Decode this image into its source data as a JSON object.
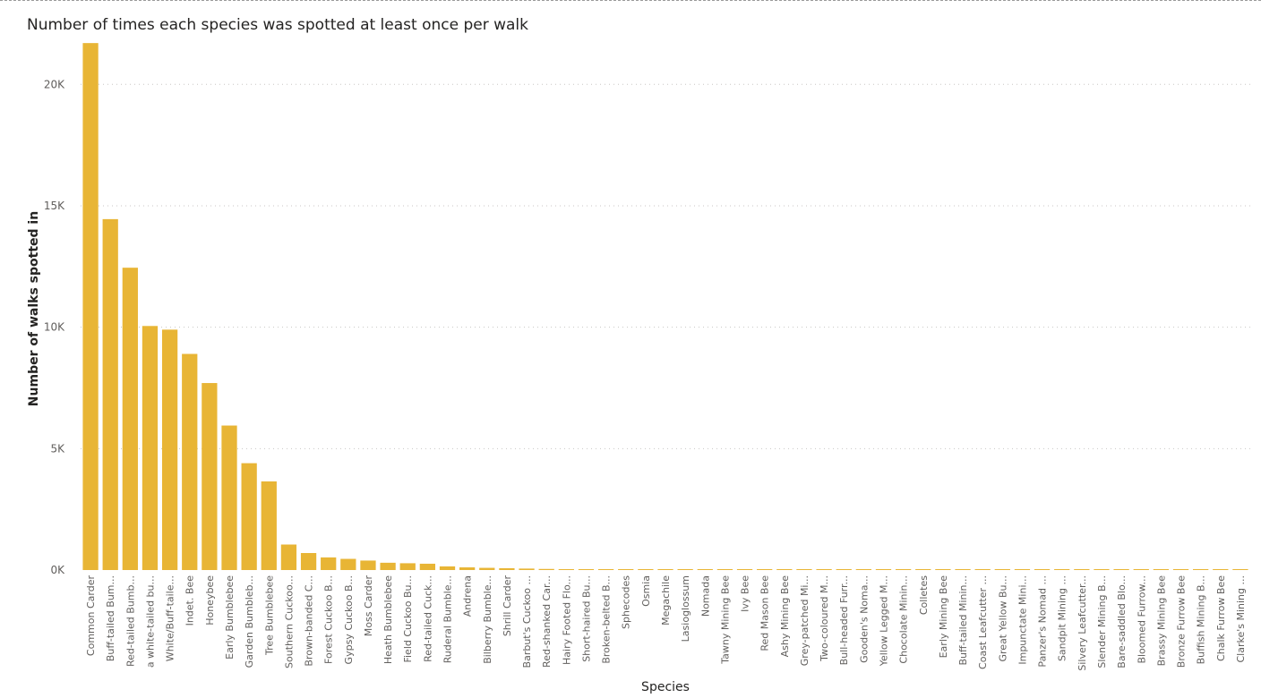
{
  "chart_data": {
    "type": "bar",
    "title": "Number of times each species was spotted at least once per walk",
    "xlabel": "Species",
    "ylabel": "Number of walks spotted in",
    "ylim": [
      0,
      22000
    ],
    "yticks": [
      0,
      5000,
      10000,
      15000,
      20000
    ],
    "ytick_labels": [
      "0K",
      "5K",
      "10K",
      "15K",
      "20K"
    ],
    "grid": true,
    "bar_color": "#E8B535",
    "categories": [
      "Common Carder",
      "Buff-tailed Bum...",
      "Red-tailed Bumb...",
      "a white-tailed bu...",
      "White/Buff-taile...",
      "Indet. Bee",
      "Honeybee",
      "Early Bumblebee",
      "Garden Bumbleb...",
      "Tree Bumblebee",
      "Southern Cuckoo...",
      "Brown-banded C...",
      "Forest Cuckoo B...",
      "Gypsy Cuckoo B...",
      "Moss Carder",
      "Heath Bumblebee",
      "Field Cuckoo Bu...",
      "Red-tailed Cuck...",
      "Ruderal Bumble...",
      "Andrena",
      "Bilberry Bumble...",
      "Shrill Carder",
      "Barbut's Cuckoo ...",
      "Red-shanked Car...",
      "Hairy Footed Flo...",
      "Short-haired Bu...",
      "Broken-belted B...",
      "Sphecodes",
      "Osmia",
      "Megachile",
      "Lasioglossum",
      "Nomada",
      "Tawny Mining Bee",
      "Ivy Bee",
      "Red Mason Bee",
      "Ashy Mining Bee",
      "Grey-patched Mi...",
      "Two-coloured M...",
      "Bull-headed Furr...",
      "Gooden's Noma...",
      "Yellow Legged M...",
      "Chocolate Minin...",
      "Colletes",
      "Early Mining Bee",
      "Buff-tailed Minin...",
      "Coast Leafcutter ...",
      "Great Yellow Bu...",
      "Impunctate Mini...",
      "Panzer's Nomad ...",
      "Sandpit Mining ...",
      "Silvery Leafcutter...",
      "Slender Mining B...",
      "Bare-saddled Blo...",
      "Bloomed Furrow...",
      "Brassy Mining Bee",
      "Bronze Furrow Bee",
      "Buffish Mining B...",
      "Chalk Furrow Bee",
      "Clarke's Mining ..."
    ],
    "values": [
      21700,
      14450,
      12450,
      10050,
      9900,
      8900,
      7700,
      5950,
      4400,
      3650,
      1050,
      700,
      520,
      460,
      390,
      300,
      280,
      260,
      150,
      110,
      90,
      75,
      60,
      45,
      30,
      25,
      20,
      15,
      12,
      10,
      8,
      7,
      6,
      5,
      5,
      4,
      4,
      3,
      3,
      3,
      3,
      2,
      2,
      2,
      2,
      2,
      1,
      1,
      1,
      1,
      1,
      1,
      1,
      1,
      1,
      1,
      1,
      1,
      1
    ]
  }
}
